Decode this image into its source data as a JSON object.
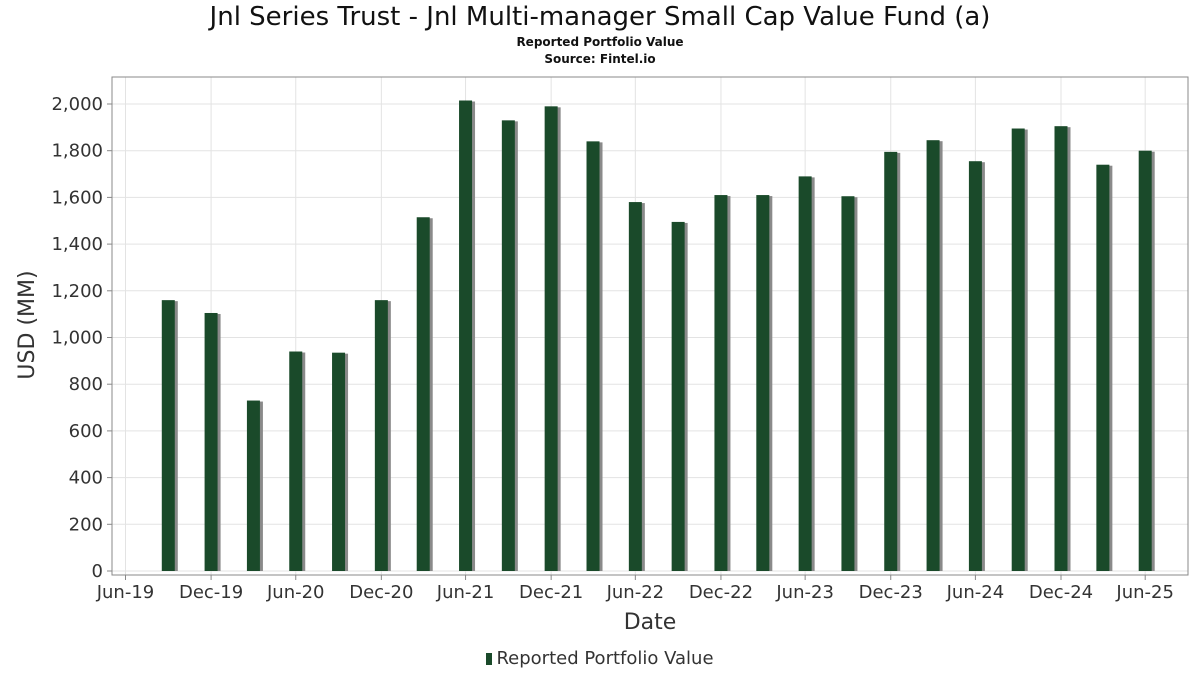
{
  "chart_data": {
    "type": "bar",
    "title": "Jnl Series Trust - Jnl Multi-manager Small Cap Value Fund (a)",
    "subtitle": "Reported Portfolio Value",
    "source": "Source: Fintel.io",
    "xlabel": "Date",
    "ylabel": "USD (MM)",
    "ylim": [
      0,
      2100
    ],
    "yticks": [
      0,
      200,
      400,
      600,
      800,
      1000,
      1200,
      1400,
      1600,
      1800,
      2000
    ],
    "ytick_labels": [
      "0",
      "200",
      "400",
      "600",
      "800",
      "1,000",
      "1,200",
      "1,400",
      "1,600",
      "1,800",
      "2,000"
    ],
    "xlim": [
      "2019-06-01",
      "2025-09-30"
    ],
    "xticks": [
      {
        "date": "2019-06-30",
        "label": "Jun-19"
      },
      {
        "date": "2019-12-31",
        "label": "Dec-19"
      },
      {
        "date": "2020-06-30",
        "label": "Jun-20"
      },
      {
        "date": "2020-12-31",
        "label": "Dec-20"
      },
      {
        "date": "2021-06-30",
        "label": "Jun-21"
      },
      {
        "date": "2021-12-31",
        "label": "Dec-21"
      },
      {
        "date": "2022-06-30",
        "label": "Jun-22"
      },
      {
        "date": "2022-12-31",
        "label": "Dec-22"
      },
      {
        "date": "2023-06-30",
        "label": "Jun-23"
      },
      {
        "date": "2023-12-31",
        "label": "Dec-23"
      },
      {
        "date": "2024-06-30",
        "label": "Jun-24"
      },
      {
        "date": "2024-12-31",
        "label": "Dec-24"
      },
      {
        "date": "2025-06-30",
        "label": "Jun-25"
      }
    ],
    "grid": true,
    "legend_position": "bottom",
    "series": [
      {
        "name": "Reported Portfolio Value",
        "color": "#1a4a2a",
        "points": [
          {
            "x": "2019-09-30",
            "y": 1160
          },
          {
            "x": "2019-12-31",
            "y": 1105
          },
          {
            "x": "2020-03-31",
            "y": 730
          },
          {
            "x": "2020-06-30",
            "y": 940
          },
          {
            "x": "2020-09-30",
            "y": 935
          },
          {
            "x": "2020-12-31",
            "y": 1160
          },
          {
            "x": "2021-03-31",
            "y": 1515
          },
          {
            "x": "2021-06-30",
            "y": 2015
          },
          {
            "x": "2021-09-30",
            "y": 1930
          },
          {
            "x": "2021-12-31",
            "y": 1990
          },
          {
            "x": "2022-03-31",
            "y": 1840
          },
          {
            "x": "2022-06-30",
            "y": 1580
          },
          {
            "x": "2022-09-30",
            "y": 1495
          },
          {
            "x": "2022-12-31",
            "y": 1610
          },
          {
            "x": "2023-03-31",
            "y": 1610
          },
          {
            "x": "2023-06-30",
            "y": 1690
          },
          {
            "x": "2023-09-30",
            "y": 1605
          },
          {
            "x": "2023-12-31",
            "y": 1795
          },
          {
            "x": "2024-03-31",
            "y": 1845
          },
          {
            "x": "2024-06-30",
            "y": 1755
          },
          {
            "x": "2024-09-30",
            "y": 1895
          },
          {
            "x": "2024-12-31",
            "y": 1905
          },
          {
            "x": "2025-03-31",
            "y": 1740
          },
          {
            "x": "2025-06-30",
            "y": 1800
          }
        ]
      }
    ]
  }
}
